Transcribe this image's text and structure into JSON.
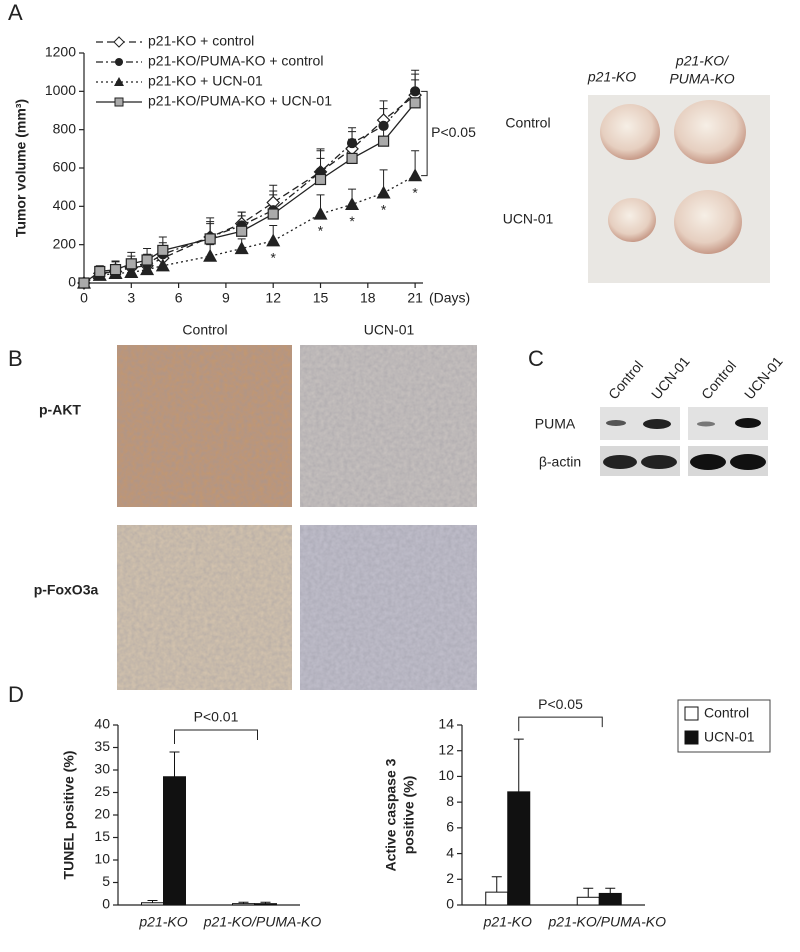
{
  "panel_labels": [
    "A",
    "B",
    "C",
    "D"
  ],
  "chart_data": [
    {
      "type": "line",
      "ylabel": "Tumor volume (mm³)",
      "xlabel": "(Days)",
      "x": [
        0,
        1,
        2,
        3,
        4,
        5,
        8,
        10,
        12,
        15,
        17,
        19,
        21
      ],
      "xlim": [
        0,
        21.5
      ],
      "xticks": [
        0,
        3,
        6,
        9,
        12,
        15,
        18,
        21
      ],
      "ylim": [
        0,
        1200
      ],
      "yticks": [
        0,
        200,
        400,
        600,
        800,
        1000,
        1200
      ],
      "series": [
        {
          "name": "p21-KO + control",
          "color": "#222222",
          "marker": "diamond",
          "dash": "dashed",
          "values": [
            0,
            50,
            60,
            80,
            90,
            130,
            240,
            310,
            420,
            580,
            700,
            850,
            980
          ],
          "errors": [
            0,
            20,
            30,
            40,
            40,
            50,
            70,
            60,
            90,
            110,
            90,
            100,
            110
          ]
        },
        {
          "name": "p21-KO/PUMA-KO + control",
          "color": "#222222",
          "marker": "circle",
          "dash": "dashdot",
          "values": [
            0,
            55,
            75,
            90,
            100,
            150,
            240,
            300,
            380,
            580,
            730,
            820,
            1000
          ],
          "errors": [
            0,
            30,
            40,
            50,
            50,
            60,
            100,
            70,
            100,
            120,
            80,
            90,
            110
          ]
        },
        {
          "name": "p21-KO + UCN-01",
          "color": "#222222",
          "marker": "triangle",
          "dash": "dotted",
          "values": [
            0,
            40,
            50,
            55,
            70,
            90,
            140,
            180,
            220,
            360,
            410,
            470,
            560
          ],
          "errors": [
            0,
            20,
            20,
            30,
            30,
            40,
            60,
            50,
            80,
            100,
            80,
            120,
            130
          ]
        },
        {
          "name": "p21-KO/PUMA-KO + UCN-01",
          "color": "#222222",
          "fill": "#aaaaaa",
          "marker": "square",
          "dash": "solid",
          "values": [
            0,
            60,
            70,
            100,
            120,
            170,
            230,
            270,
            360,
            540,
            650,
            740,
            940
          ],
          "errors": [
            0,
            30,
            40,
            60,
            60,
            70,
            90,
            80,
            100,
            110,
            100,
            110,
            120
          ]
        }
      ],
      "annotation": "P<0.05",
      "significance_marks": [
        "*",
        "*",
        "*",
        "*",
        "*"
      ]
    },
    {
      "type": "bar",
      "ylabel": "TUNEL positive (%)",
      "categories": [
        "p21-KO",
        "p21-KO/PUMA-KO"
      ],
      "ylim": [
        0,
        40
      ],
      "yticks": [
        0,
        5,
        10,
        15,
        20,
        25,
        30,
        35,
        40
      ],
      "series": [
        {
          "color": "#ffffff",
          "values": [
            0.5,
            0.3
          ],
          "errors": [
            0.5,
            0.3
          ]
        },
        {
          "color": "#111111",
          "values": [
            28.5,
            0.3
          ],
          "errors": [
            5.5,
            0.3
          ]
        }
      ],
      "annotation": "P<0.01"
    },
    {
      "type": "bar",
      "ylabel": [
        "Active caspase 3",
        "positive (%)"
      ],
      "categories": [
        "p21-KO",
        "p21-KO/PUMA-KO"
      ],
      "ylim": [
        0,
        14
      ],
      "yticks": [
        0,
        2,
        4,
        6,
        8,
        10,
        12,
        14
      ],
      "series": [
        {
          "name": "Control",
          "color": "#ffffff",
          "values": [
            1.0,
            0.6
          ],
          "errors": [
            1.2,
            0.7
          ]
        },
        {
          "name": "UCN-01",
          "color": "#111111",
          "values": [
            8.8,
            0.9
          ],
          "errors": [
            4.1,
            0.4
          ]
        }
      ],
      "annotation": "P<0.05",
      "legend": "top-right"
    }
  ],
  "photo": {
    "col1": "p21-KO",
    "col2_line1": "p21-KO/",
    "col2_line2": "PUMA-KO",
    "row1": "Control",
    "row2": "UCN-01"
  },
  "histology": {
    "col1": "Control",
    "col2": "UCN-01",
    "row1": "p-AKT",
    "row2": "p-FoxO3a"
  },
  "western_blot": {
    "lanes": [
      "Control",
      "UCN-01",
      "Control",
      "UCN-01"
    ],
    "row1": "PUMA",
    "row2": "β-actin"
  }
}
